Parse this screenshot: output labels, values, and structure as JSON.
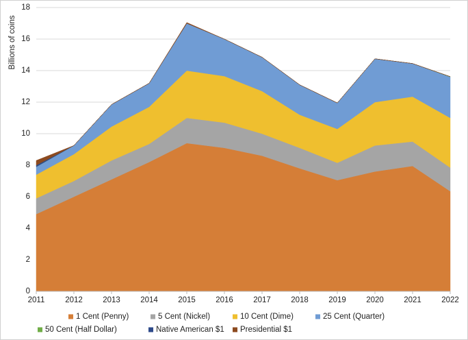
{
  "chart_data": {
    "type": "stacked-area",
    "y_label": "Billions of coins",
    "x": [
      2011,
      2012,
      2013,
      2014,
      2015,
      2016,
      2017,
      2018,
      2019,
      2020,
      2021,
      2022
    ],
    "xlim": [
      2011,
      2022
    ],
    "xticks": [
      2011,
      2012,
      2013,
      2014,
      2015,
      2016,
      2017,
      2018,
      2019,
      2020,
      2021,
      2022
    ],
    "ylim": [
      0,
      18
    ],
    "yticks": [
      0,
      2,
      4,
      6,
      8,
      10,
      12,
      14,
      16,
      18
    ],
    "grid": true,
    "legend": "bottom",
    "series": [
      {
        "name": "1 Cent (Penny)",
        "color": "#d57e37",
        "values": [
          4.9,
          6.0,
          7.1,
          8.2,
          9.4,
          9.1,
          8.6,
          7.8,
          7.05,
          7.6,
          7.95,
          6.35
        ]
      },
      {
        "name": "5 Cent (Nickel)",
        "color": "#a5a5a5",
        "values": [
          1.0,
          1.0,
          1.2,
          1.15,
          1.6,
          1.6,
          1.4,
          1.3,
          1.1,
          1.65,
          1.55,
          1.5
        ]
      },
      {
        "name": "10 Cent (Dime)",
        "color": "#efbf2f",
        "values": [
          1.5,
          1.7,
          2.15,
          2.35,
          3.0,
          2.95,
          2.7,
          2.1,
          2.15,
          2.75,
          2.85,
          3.15
        ]
      },
      {
        "name": "25 Cent (Quarter)",
        "color": "#709cd4",
        "values": [
          0.5,
          0.55,
          1.4,
          1.5,
          3.0,
          2.35,
          2.15,
          1.9,
          1.65,
          2.75,
          2.1,
          2.6
        ]
      },
      {
        "name": "50 Cent (Half Dollar)",
        "color": "#70ad47",
        "values": [
          0.0,
          0.0,
          0.0,
          0.0,
          0.0,
          0.0,
          0.0,
          0.0,
          0.0,
          0.0,
          0.0,
          0.02
        ]
      },
      {
        "name": "Native American $1",
        "color": "#2e4a8a",
        "values": [
          0.1,
          0.0,
          0.0,
          0.0,
          0.0,
          0.0,
          0.0,
          0.0,
          0.0,
          0.0,
          0.0,
          0.0
        ]
      },
      {
        "name": "Presidential $1",
        "color": "#8c4a1f",
        "values": [
          0.3,
          0.0,
          0.0,
          0.0,
          0.05,
          0.0,
          0.0,
          0.0,
          0.0,
          0.0,
          0.0,
          0.0
        ]
      }
    ]
  }
}
